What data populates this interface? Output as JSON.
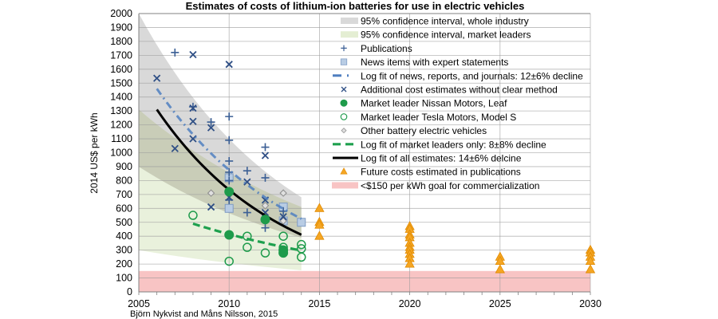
{
  "chart_data": {
    "type": "scatter",
    "title": "Estimates of costs of lithium-ion batteries for use in electric vehicles",
    "xlabel": "",
    "ylabel": "2014 US$ per kWh",
    "xlim": [
      2005,
      2030
    ],
    "ylim": [
      0,
      2000
    ],
    "x_ticks": [
      "2005",
      "2010",
      "2015",
      "2020",
      "2025",
      "2030"
    ],
    "x_tick_values": [
      2005,
      2010,
      2015,
      2020,
      2025,
      2030
    ],
    "y_ticks": [
      "0",
      "100",
      "200",
      "300",
      "400",
      "500",
      "600",
      "700",
      "800",
      "900",
      "1000",
      "1100",
      "1200",
      "1300",
      "1400",
      "1500",
      "1600",
      "1700",
      "1800",
      "1900",
      "2000"
    ],
    "grid": "horizontal and at labelled x ticks",
    "legend_position": "top-right (inside)",
    "credit": "Björn Nykvist and Måns Nilsson, 2015",
    "colors": {
      "band_industry": "#d9d9d9",
      "band_leaders": "#e4eed3",
      "band_overlap": "#c9cdb8",
      "publications": "#3b5f95",
      "news": "#b8cce4",
      "news_fit": "#4f7fbf",
      "additional": "#2f4f85",
      "nissan": "#1e9b4b",
      "tesla": "#1e9b4b",
      "other_bev": "#8c8c8c",
      "leaders_fit": "#1ea04e",
      "all_fit": "#000000",
      "future": "#f5a623",
      "goal": "#f8c4c4"
    },
    "bands": [
      {
        "name": "95% confidence interval, whole industry",
        "x": [
          2005,
          2014
        ],
        "upper": [
          2000,
          680
        ],
        "lower": [
          900,
          390
        ]
      },
      {
        "name": "95% confidence interval, market leaders",
        "x": [
          2005,
          2014
        ],
        "upper": [
          1310,
          610
        ],
        "lower": [
          300,
          155
        ]
      }
    ],
    "goal_band": {
      "name": "<$150 per kWh goal for commercialization",
      "from": 0,
      "to": 150
    },
    "series": [
      {
        "name": "Publications",
        "marker": "plus",
        "points": [
          [
            2007,
            1720
          ],
          [
            2009,
            1220
          ],
          [
            2010,
            1260
          ],
          [
            2010,
            1090
          ],
          [
            2010,
            940
          ],
          [
            2010,
            860
          ],
          [
            2010,
            800
          ],
          [
            2010,
            660
          ],
          [
            2011,
            870
          ],
          [
            2011,
            570
          ],
          [
            2012,
            1040
          ],
          [
            2012,
            820
          ],
          [
            2012,
            460
          ],
          [
            2013,
            580
          ],
          [
            2008,
            1330
          ]
        ]
      },
      {
        "name": "News items with expert statements",
        "marker": "square",
        "points": [
          [
            2010,
            820
          ],
          [
            2010,
            600
          ],
          [
            2013,
            610
          ],
          [
            2014,
            500
          ],
          [
            2013,
            510
          ]
        ]
      },
      {
        "name": "Additional cost estimates without clear method",
        "marker": "x",
        "points": [
          [
            2006,
            1535
          ],
          [
            2007,
            1030
          ],
          [
            2008,
            1705
          ],
          [
            2008,
            1320
          ],
          [
            2008,
            1225
          ],
          [
            2008,
            1100
          ],
          [
            2009,
            1180
          ],
          [
            2009,
            610
          ],
          [
            2010,
            1635
          ],
          [
            2010,
            680
          ],
          [
            2011,
            790
          ],
          [
            2012,
            980
          ],
          [
            2012,
            660
          ],
          [
            2012,
            570
          ],
          [
            2013,
            540
          ]
        ]
      },
      {
        "name": "Market leader Nissan Motors, Leaf",
        "marker": "filled-circle",
        "points": [
          [
            2010,
            720
          ],
          [
            2010,
            410
          ],
          [
            2012,
            520
          ],
          [
            2013,
            300
          ],
          [
            2013,
            280
          ]
        ]
      },
      {
        "name": "Market leader Tesla Motors, Model S",
        "marker": "open-circle",
        "points": [
          [
            2008,
            550
          ],
          [
            2010,
            220
          ],
          [
            2011,
            400
          ],
          [
            2011,
            320
          ],
          [
            2012,
            280
          ],
          [
            2013,
            400
          ],
          [
            2013,
            320
          ],
          [
            2014,
            340
          ],
          [
            2014,
            310
          ],
          [
            2014,
            250
          ]
        ]
      },
      {
        "name": "Other battery electric vehicles",
        "marker": "diamond",
        "points": [
          [
            2009,
            710
          ],
          [
            2012,
            620
          ],
          [
            2013,
            710
          ],
          [
            2013,
            510
          ]
        ]
      },
      {
        "name": "Future costs estimated in publications",
        "marker": "triangle",
        "points": [
          [
            2015,
            600
          ],
          [
            2015,
            500
          ],
          [
            2015,
            480
          ],
          [
            2015,
            400
          ],
          [
            2020,
            470
          ],
          [
            2020,
            450
          ],
          [
            2020,
            410
          ],
          [
            2020,
            390
          ],
          [
            2020,
            350
          ],
          [
            2020,
            320
          ],
          [
            2020,
            300
          ],
          [
            2020,
            270
          ],
          [
            2020,
            240
          ],
          [
            2020,
            200
          ],
          [
            2025,
            250
          ],
          [
            2025,
            220
          ],
          [
            2025,
            160
          ],
          [
            2030,
            300
          ],
          [
            2030,
            280
          ],
          [
            2030,
            250
          ],
          [
            2030,
            220
          ],
          [
            2030,
            160
          ]
        ]
      }
    ],
    "fits": [
      {
        "name": "Log fit of news, reports, and journals: 12±6% decline",
        "style": "dash-dot",
        "x": [
          2006,
          2014
        ],
        "y0": 1460,
        "annual_decline": 0.12
      },
      {
        "name": "Log fit of market leaders only: 8±8% decline",
        "style": "dashed",
        "x": [
          2008,
          2014
        ],
        "y0": 490,
        "annual_decline": 0.08
      },
      {
        "name": "Log fit of all estimates: 14±6% delcine",
        "style": "solid",
        "x": [
          2006,
          2014
        ],
        "y0": 1310,
        "annual_decline": 0.135
      }
    ],
    "legend": [
      {
        "label": "95% confidence interval, whole industry",
        "symbol": "band-grey"
      },
      {
        "label": "95% confidence interval, market leaders",
        "symbol": "band-green"
      },
      {
        "label": "Publications",
        "symbol": "plus"
      },
      {
        "label": "News items with expert statements",
        "symbol": "square"
      },
      {
        "label": "Log fit of news, reports, and journals: 12±6% decline",
        "symbol": "dash-dot"
      },
      {
        "label": "Additional cost estimates without clear method",
        "symbol": "x"
      },
      {
        "label": "Market leader Nissan Motors, Leaf",
        "symbol": "filled-circle"
      },
      {
        "label": "Market leader Tesla Motors, Model S",
        "symbol": "open-circle"
      },
      {
        "label": "Other battery electric vehicles",
        "symbol": "diamond"
      },
      {
        "label": "Log fit of market leaders only: 8±8% decline",
        "symbol": "dashed"
      },
      {
        "label": "Log fit of all estimates: 14±6% delcine",
        "symbol": "solid"
      },
      {
        "label": "Future costs estimated in publications",
        "symbol": "triangle"
      },
      {
        "label": "<$150 per kWh goal for commercialization",
        "symbol": "band-red"
      }
    ]
  }
}
